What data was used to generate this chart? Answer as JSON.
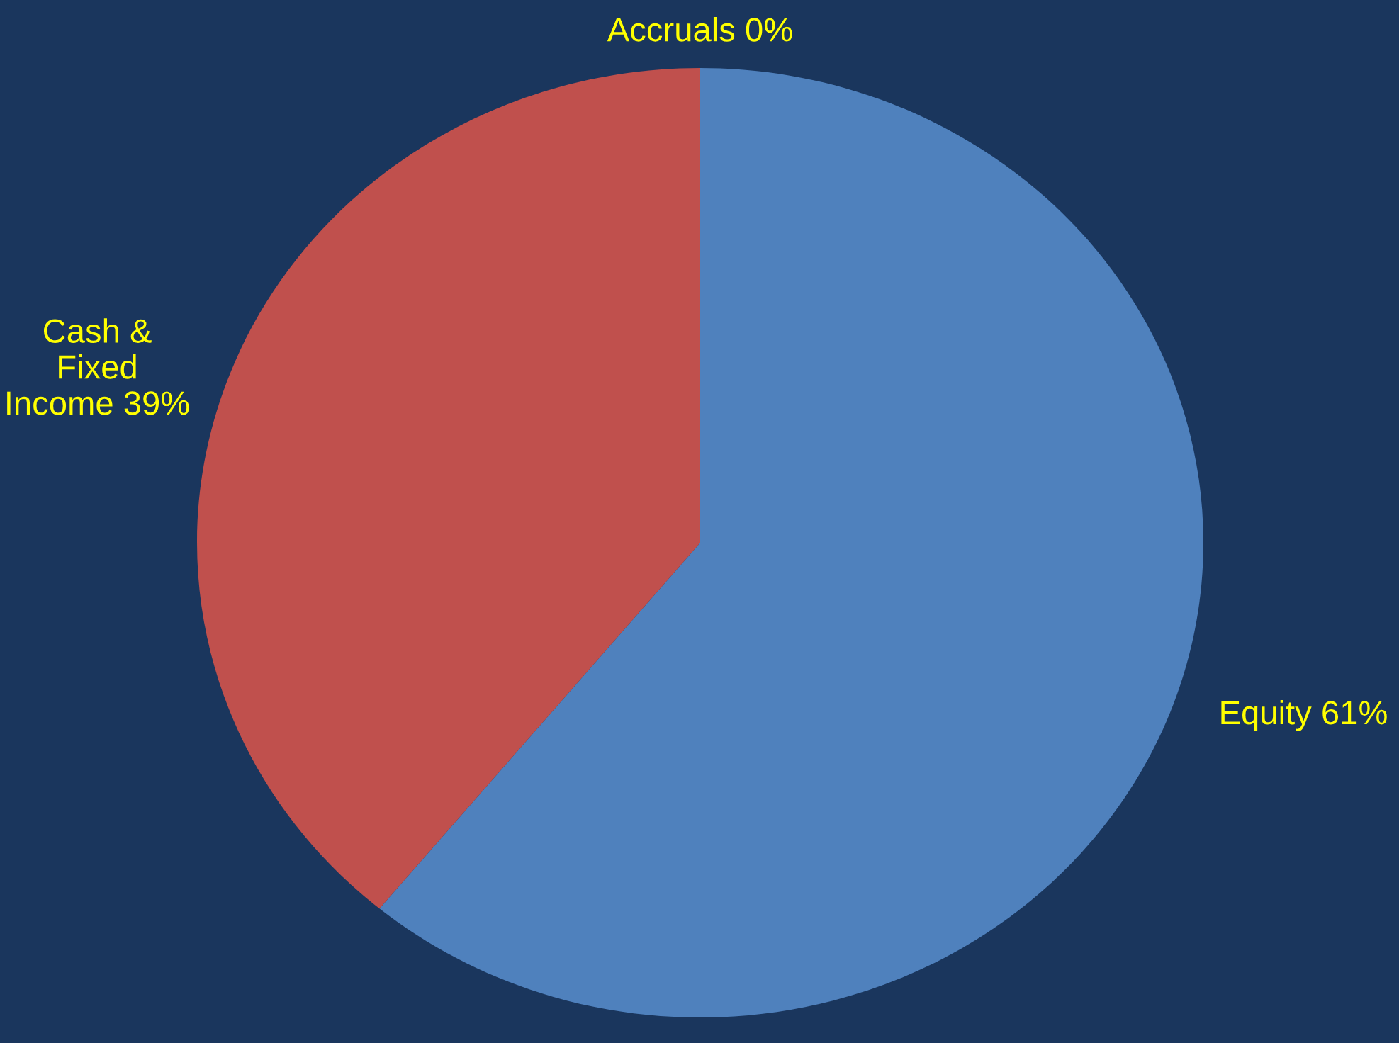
{
  "chart_data": {
    "type": "pie",
    "categories": [
      "Equity",
      "Cash & Fixed Income",
      "Accruals"
    ],
    "values": [
      61,
      39,
      0
    ],
    "value_labels": [
      "61%",
      "39%",
      "0%"
    ],
    "colors": [
      "#4f81bd",
      "#c0504d",
      "#9bbb59"
    ]
  }
}
